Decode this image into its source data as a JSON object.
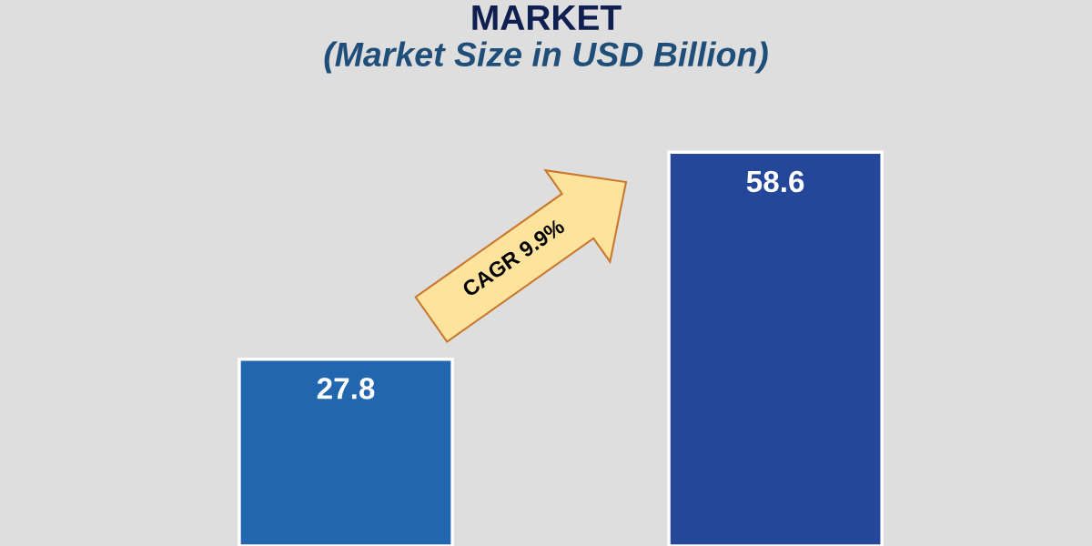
{
  "chart_data": {
    "type": "bar",
    "title": "MARKET",
    "subtitle": "(Market Size in USD Billion)",
    "categories": [
      null,
      null
    ],
    "values": [
      27.8,
      58.6
    ],
    "colors": [
      "#2166ae",
      "#24479a"
    ],
    "data_labels": true,
    "annotations": [
      "CAGR 9.9%"
    ]
  }
}
